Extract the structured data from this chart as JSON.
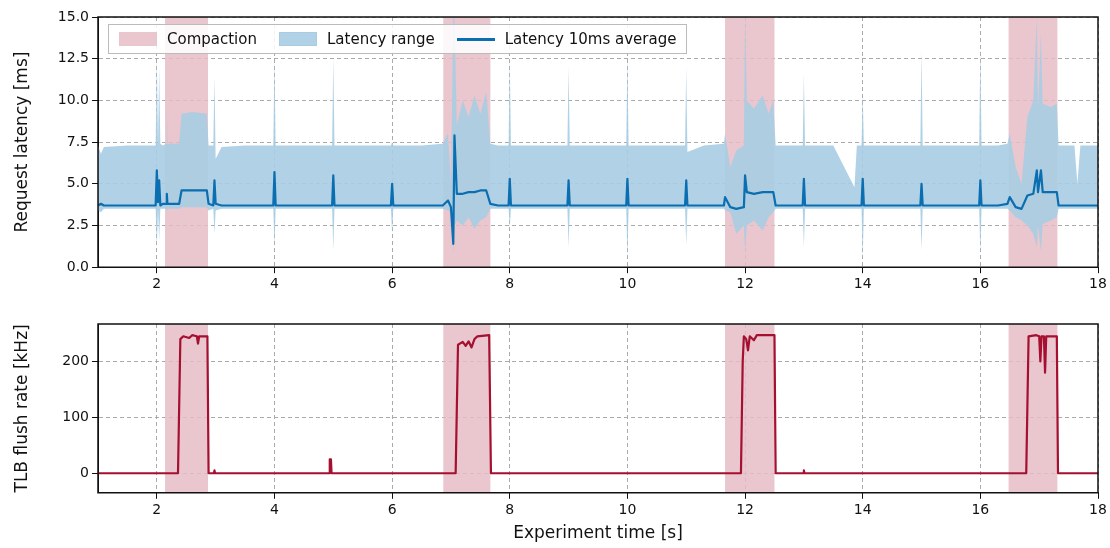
{
  "chart_data": [
    {
      "type": "line",
      "ylabel": "Request latency [ms]",
      "xlim": [
        1,
        18
      ],
      "xticks": [
        2,
        4,
        6,
        8,
        10,
        12,
        14,
        16,
        18
      ],
      "ylim": [
        0,
        15
      ],
      "yticks": [
        {
          "value": 0,
          "label": "0.0"
        },
        {
          "value": 2.5,
          "label": "2.5"
        },
        {
          "value": 5,
          "label": "5.0"
        },
        {
          "value": 7.5,
          "label": "7.5"
        },
        {
          "value": 10,
          "label": "10.0"
        },
        {
          "value": 12.5,
          "label": "12.5"
        },
        {
          "value": 15,
          "label": "15.0"
        }
      ],
      "grid": true,
      "legend": "top left",
      "line_style": "solid",
      "marker": "none",
      "annotations": [
        "Latency range"
      ],
      "x": [
        1.0,
        1.05,
        1.1,
        1.5,
        1.98,
        2.0,
        2.02,
        2.04,
        2.06,
        2.1,
        2.16,
        2.17,
        2.18,
        2.38,
        2.42,
        2.6,
        2.85,
        2.88,
        2.96,
        2.98,
        3.0,
        3.1,
        3.5,
        3.98,
        4.0,
        4.02,
        4.5,
        4.98,
        5.0,
        5.02,
        5.5,
        5.98,
        6.0,
        6.02,
        6.5,
        6.86,
        6.95,
        7.0,
        7.04,
        7.06,
        7.1,
        7.2,
        7.3,
        7.4,
        7.5,
        7.6,
        7.67,
        7.8,
        7.98,
        8.0,
        8.02,
        8.5,
        8.98,
        9.0,
        9.02,
        9.5,
        9.98,
        10.0,
        10.02,
        10.5,
        10.98,
        11.0,
        11.02,
        11.3,
        11.64,
        11.66,
        11.75,
        11.85,
        11.98,
        12.0,
        12.03,
        12.15,
        12.3,
        12.4,
        12.48,
        12.52,
        12.8,
        12.98,
        13.0,
        13.02,
        13.5,
        13.86,
        13.9,
        13.98,
        14.0,
        14.02,
        14.5,
        14.98,
        15.0,
        15.02,
        15.5,
        15.98,
        16.0,
        16.02,
        16.3,
        16.46,
        16.5,
        16.6,
        16.7,
        16.8,
        16.9,
        16.96,
        16.98,
        17.03,
        17.06,
        17.2,
        17.3,
        17.33,
        17.6,
        17.65,
        17.7,
        18.0
      ],
      "series": [
        {
          "name": "Latency 10ms average",
          "type": "line",
          "color": "#0a6eb0",
          "values": [
            3.7,
            3.8,
            3.7,
            3.7,
            3.7,
            5.8,
            3.9,
            5.2,
            3.7,
            3.8,
            3.8,
            4.4,
            3.8,
            3.8,
            4.6,
            4.6,
            4.6,
            3.8,
            3.7,
            5.2,
            3.8,
            3.7,
            3.7,
            3.7,
            5.7,
            3.7,
            3.7,
            3.7,
            5.5,
            3.7,
            3.7,
            3.7,
            5.0,
            3.7,
            3.7,
            3.7,
            4.0,
            3.6,
            1.4,
            7.9,
            4.4,
            4.4,
            4.5,
            4.5,
            4.6,
            4.6,
            3.8,
            3.7,
            3.7,
            5.3,
            3.7,
            3.7,
            3.7,
            5.2,
            3.7,
            3.7,
            3.7,
            5.3,
            3.7,
            3.7,
            3.7,
            5.2,
            3.7,
            3.7,
            3.7,
            4.2,
            3.6,
            3.5,
            3.6,
            5.5,
            4.5,
            4.4,
            4.5,
            4.5,
            4.5,
            3.7,
            3.7,
            3.7,
            5.3,
            3.7,
            3.7,
            3.7,
            3.7,
            3.7,
            5.3,
            3.7,
            3.7,
            3.7,
            5.0,
            3.7,
            3.7,
            3.7,
            5.2,
            3.7,
            3.7,
            3.8,
            4.2,
            3.6,
            3.5,
            4.3,
            4.4,
            5.8,
            4.5,
            5.8,
            4.5,
            4.5,
            4.5,
            3.7,
            3.7,
            3.7,
            3.7,
            3.7
          ],
          "lower": [
            3.4,
            3.3,
            3.5,
            3.5,
            3.5,
            1.2,
            3.4,
            1.6,
            3.5,
            3.5,
            3.5,
            3.4,
            3.5,
            3.5,
            3.6,
            3.6,
            3.6,
            3.4,
            3.5,
            2.0,
            3.4,
            3.5,
            3.5,
            3.5,
            1.2,
            3.5,
            3.5,
            3.5,
            1.0,
            3.5,
            3.5,
            3.5,
            2.0,
            3.5,
            3.5,
            3.5,
            3.4,
            3.3,
            0.9,
            2.5,
            2.8,
            2.5,
            3.0,
            2.3,
            2.8,
            3.0,
            3.5,
            3.5,
            3.5,
            2.4,
            3.5,
            3.5,
            3.5,
            1.2,
            3.5,
            3.5,
            3.5,
            0.6,
            3.5,
            3.5,
            3.5,
            1.3,
            3.5,
            3.5,
            3.5,
            3.4,
            3.3,
            2.0,
            2.5,
            1.0,
            2.5,
            2.8,
            2.2,
            3.0,
            3.3,
            3.5,
            3.5,
            3.5,
            1.2,
            3.5,
            3.5,
            3.5,
            3.5,
            3.5,
            0.5,
            3.5,
            3.5,
            3.5,
            1.0,
            3.5,
            3.5,
            3.5,
            0.8,
            3.5,
            3.5,
            3.5,
            3.4,
            3.0,
            2.8,
            2.5,
            2.0,
            1.2,
            2.5,
            1.0,
            2.6,
            2.8,
            3.0,
            3.5,
            3.5,
            3.5,
            3.5,
            3.5
          ],
          "upper": [
            7.3,
            6.8,
            7.2,
            7.3,
            7.3,
            12.6,
            7.4,
            12.0,
            7.4,
            7.3,
            7.4,
            9.5,
            7.4,
            7.4,
            9.2,
            9.3,
            9.2,
            7.3,
            7.3,
            11.4,
            6.5,
            7.2,
            7.3,
            7.3,
            12.6,
            7.3,
            7.3,
            7.3,
            12.6,
            7.3,
            7.3,
            7.3,
            7.5,
            7.3,
            7.3,
            7.4,
            8.0,
            5.0,
            15.0,
            15.0,
            8.5,
            10.0,
            9.0,
            10.3,
            9.2,
            10.5,
            7.4,
            7.3,
            7.3,
            12.6,
            7.3,
            7.3,
            7.3,
            12.0,
            7.3,
            7.3,
            7.3,
            12.6,
            7.3,
            7.3,
            7.3,
            12.0,
            6.9,
            7.3,
            7.4,
            8.0,
            6.0,
            7.0,
            7.3,
            15.0,
            10.0,
            9.5,
            10.3,
            9.2,
            10.0,
            7.3,
            7.3,
            7.3,
            11.6,
            7.3,
            7.3,
            4.8,
            7.3,
            7.3,
            10.4,
            7.3,
            7.3,
            7.3,
            13.0,
            7.3,
            7.3,
            7.3,
            13.2,
            7.3,
            7.3,
            7.4,
            8.0,
            6.0,
            5.0,
            9.0,
            10.0,
            15.0,
            9.5,
            14.0,
            9.8,
            9.6,
            9.8,
            7.3,
            7.3,
            5.0,
            7.3,
            7.3
          ]
        }
      ],
      "bands": [
        {
          "axis": "x",
          "from": 2.14,
          "to": 2.87,
          "label": "Compaction",
          "color": "#e6bcc5"
        },
        {
          "axis": "x",
          "from": 6.87,
          "to": 7.67,
          "color": "#e6bcc5"
        },
        {
          "axis": "x",
          "from": 11.66,
          "to": 12.5,
          "color": "#e6bcc5"
        },
        {
          "axis": "x",
          "from": 16.48,
          "to": 17.31,
          "color": "#e6bcc5"
        }
      ]
    },
    {
      "type": "line",
      "ylabel": "TLB flush rate [kHz]",
      "xlabel": "Experiment time [s]",
      "xlim": [
        1,
        18
      ],
      "xticks": [
        2,
        4,
        6,
        8,
        10,
        12,
        14,
        16,
        18
      ],
      "ylim": [
        -35,
        267
      ],
      "yticks": [
        0,
        100,
        200
      ],
      "grid": true,
      "line_style": "solid",
      "marker": "none",
      "x": [
        1.0,
        2.36,
        2.4,
        2.45,
        2.55,
        2.6,
        2.68,
        2.7,
        2.72,
        2.86,
        2.88,
        2.97,
        2.98,
        2.99,
        4.93,
        4.94,
        4.96,
        4.97,
        7.08,
        7.12,
        7.2,
        7.25,
        7.3,
        7.35,
        7.4,
        7.45,
        7.65,
        7.68,
        11.93,
        11.96,
        11.98,
        12.02,
        12.05,
        12.08,
        12.15,
        12.2,
        12.5,
        12.52,
        12.99,
        13.0,
        13.01,
        16.78,
        16.82,
        16.95,
        17.0,
        17.02,
        17.04,
        17.08,
        17.1,
        17.12,
        17.3,
        17.32,
        18.0
      ],
      "series": [
        {
          "type": "line",
          "color": "#a50f30",
          "values": [
            0,
            0,
            240,
            245,
            242,
            247,
            245,
            232,
            245,
            245,
            0,
            0,
            5,
            0,
            0,
            25,
            25,
            0,
            0,
            230,
            235,
            228,
            236,
            225,
            240,
            245,
            247,
            0,
            0,
            200,
            245,
            240,
            220,
            245,
            238,
            247,
            247,
            0,
            0,
            5,
            0,
            0,
            245,
            247,
            245,
            200,
            245,
            245,
            180,
            245,
            245,
            0,
            0
          ]
        }
      ],
      "bands": [
        {
          "axis": "x",
          "from": 2.14,
          "to": 2.87,
          "color": "#e6bcc5"
        },
        {
          "axis": "x",
          "from": 6.87,
          "to": 7.67,
          "color": "#e6bcc5"
        },
        {
          "axis": "x",
          "from": 11.66,
          "to": 12.5,
          "color": "#e6bcc5"
        },
        {
          "axis": "x",
          "from": 16.48,
          "to": 17.31,
          "color": "#e6bcc5"
        }
      ]
    }
  ]
}
